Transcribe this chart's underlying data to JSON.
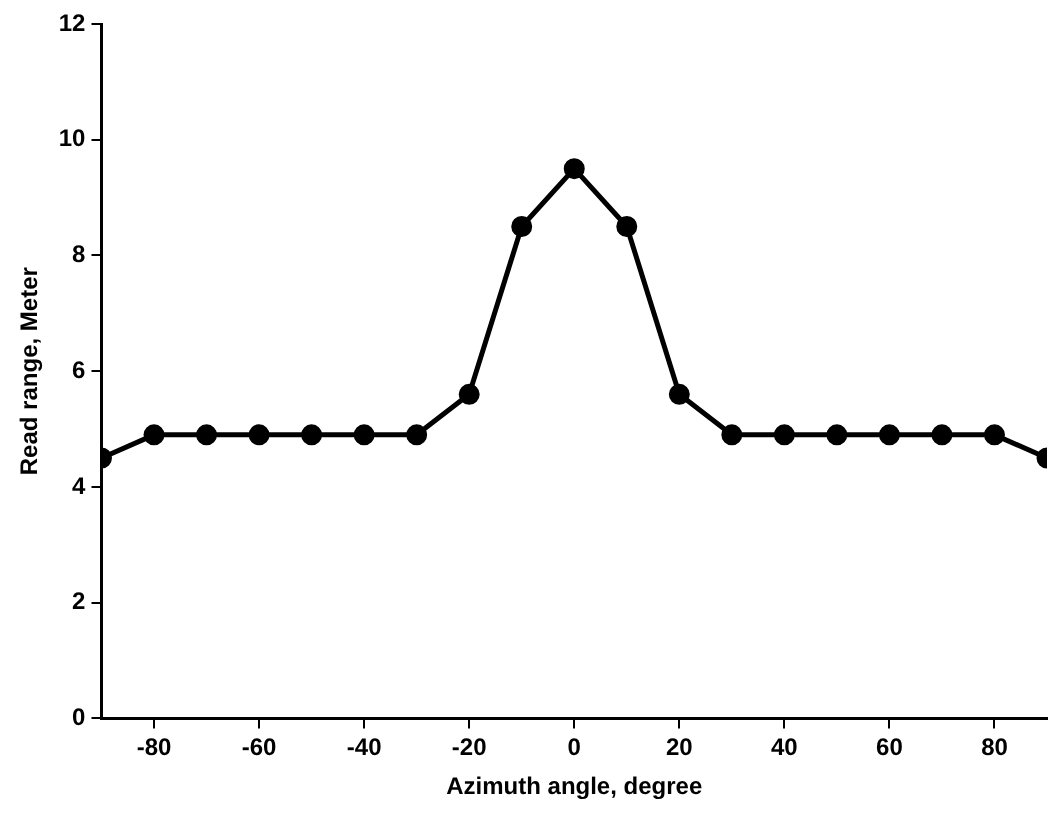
{
  "chart_data": {
    "type": "line",
    "xlabel": "Azimuth angle, degree",
    "ylabel": "Read range, Meter",
    "x": [
      -90,
      -80,
      -70,
      -60,
      -50,
      -40,
      -30,
      -20,
      -10,
      0,
      10,
      20,
      30,
      40,
      50,
      60,
      70,
      80,
      90
    ],
    "series": [
      {
        "color": "#000000",
        "values": [
          4.5,
          4.9,
          4.9,
          4.9,
          4.9,
          4.9,
          4.9,
          5.6,
          8.5,
          9.5,
          8.5,
          5.6,
          4.9,
          4.9,
          4.9,
          4.9,
          4.9,
          4.9,
          4.5
        ]
      }
    ],
    "xlim": [
      -90,
      90
    ],
    "xticks": [
      -80,
      -60,
      -40,
      -20,
      0,
      20,
      40,
      60,
      80
    ],
    "ylim": [
      0,
      12
    ],
    "yticks": [
      0,
      2,
      4,
      6,
      8,
      10,
      12
    ],
    "grid": false,
    "legend": false,
    "marker": "circle",
    "line_style": "solid"
  }
}
